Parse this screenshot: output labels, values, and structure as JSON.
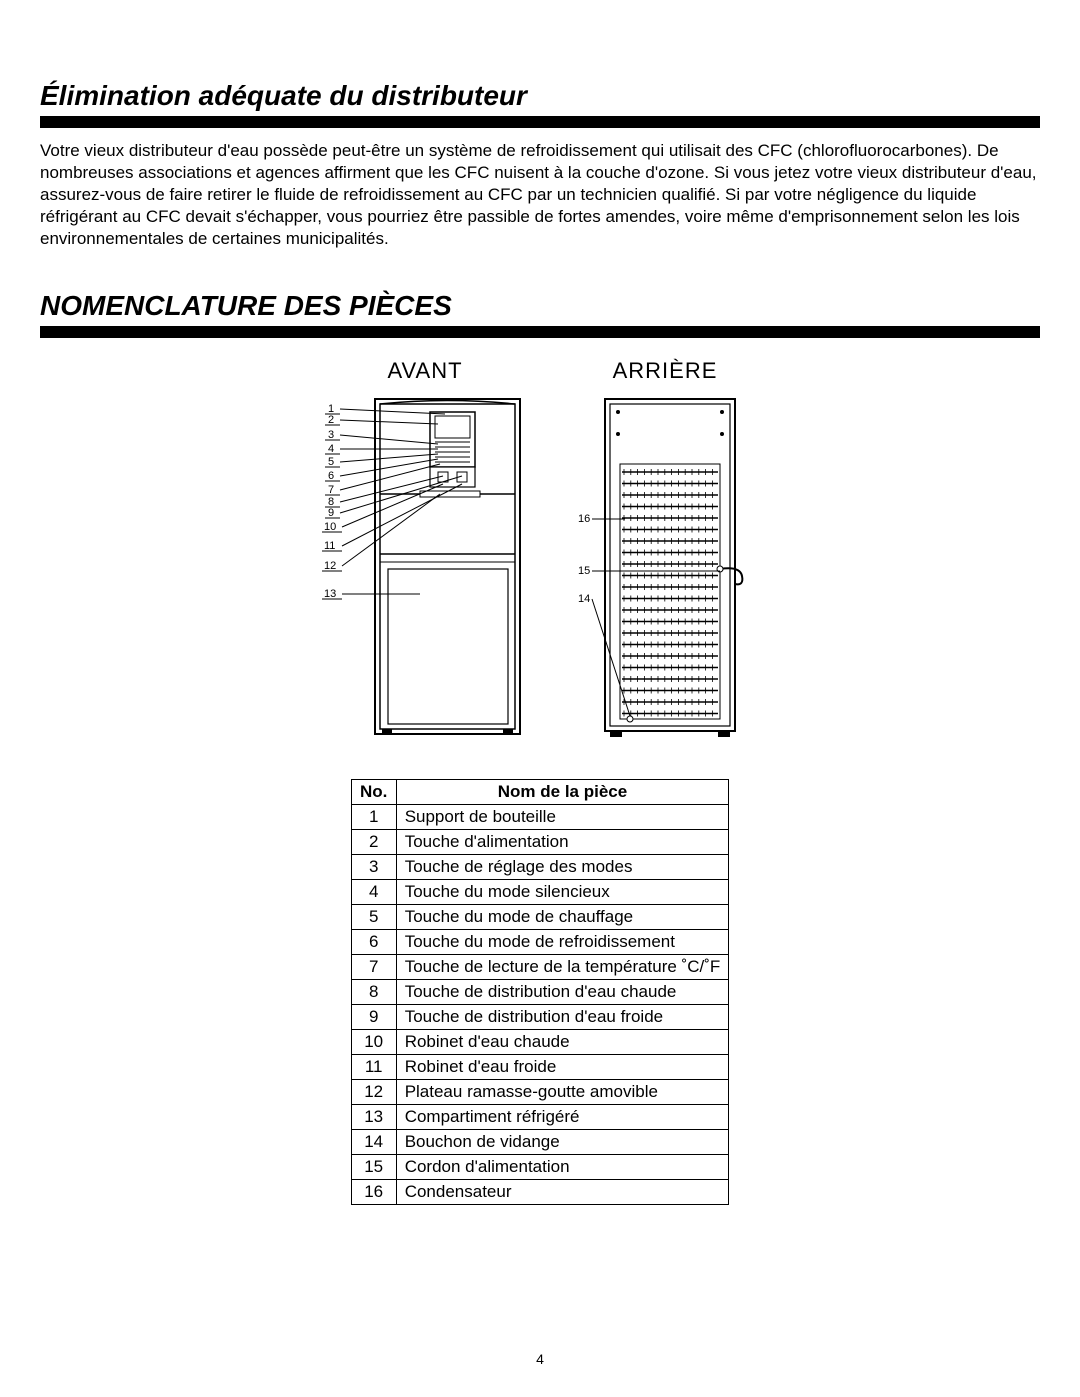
{
  "section1": {
    "title": "Élimination adéquate du distributeur",
    "body": "Votre vieux distributeur d'eau possède peut-être un système de refroidissement qui utilisait des CFC (chlorofluorocarbones). De nombreuses associations et agences affirment que les CFC nuisent à la couche d'ozone. Si vous jetez votre vieux distributeur d'eau, assurez-vous de faire retirer le fluide de refroidissement au CFC par un technicien qualifié. Si par votre négligence du liquide réfrigérant au CFC devait s'échapper, vous pourriez être passible de fortes amendes, voire même d'emprisonnement selon les lois environnementales de certaines municipalités."
  },
  "section2": {
    "title": "Nomenclature des pièces"
  },
  "diagram": {
    "front_label": "AVANT",
    "back_label": "ARRIÈRE",
    "front_numbers": [
      "1",
      "2",
      "3",
      "4",
      "5",
      "6",
      "7",
      "8",
      "9",
      "10",
      "11",
      "12",
      "13"
    ],
    "back_numbers": {
      "14": "14",
      "15": "15",
      "16": "16"
    },
    "stroke": "#000000",
    "fill": "#ffffff",
    "label_fontsize": 11
  },
  "table": {
    "header_no": "No.",
    "header_name": "Nom de la pièce",
    "rows": [
      {
        "no": "1",
        "name": "Support de bouteille"
      },
      {
        "no": "2",
        "name": "Touche d'alimentation"
      },
      {
        "no": "3",
        "name": "Touche de réglage des modes"
      },
      {
        "no": "4",
        "name": "Touche du mode silencieux"
      },
      {
        "no": "5",
        "name": "Touche du mode de chauffage"
      },
      {
        "no": "6",
        "name": "Touche du mode de refroidissement"
      },
      {
        "no": "7",
        "name": "Touche de lecture de la température ˚C/˚F"
      },
      {
        "no": "8",
        "name": "Touche de distribution d'eau chaude"
      },
      {
        "no": "9",
        "name": "Touche de distribution d'eau froide"
      },
      {
        "no": "10",
        "name": "Robinet d'eau chaude"
      },
      {
        "no": "11",
        "name": "Robinet d'eau froide"
      },
      {
        "no": "12",
        "name": "Plateau ramasse-goutte amovible"
      },
      {
        "no": "13",
        "name": "Compartiment réfrigéré"
      },
      {
        "no": "14",
        "name": "Bouchon de vidange"
      },
      {
        "no": "15",
        "name": "Cordon d'alimentation"
      },
      {
        "no": "16",
        "name": "Condensateur"
      }
    ]
  },
  "page_number": "4"
}
